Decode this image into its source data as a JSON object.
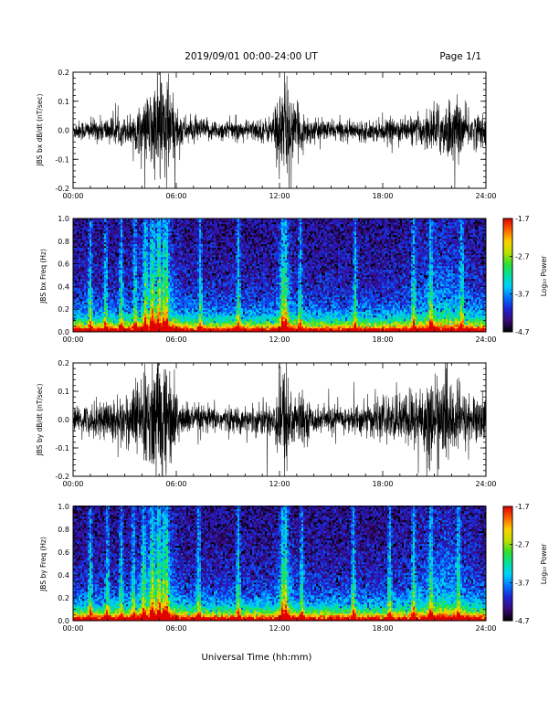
{
  "header": {
    "date_range": "2019/09/01  00:00-24:00 UT",
    "page": "Page 1/1"
  },
  "colorbar": {
    "title": "Log₁₀ Power",
    "tick_labels": [
      "-1.7",
      "-2.7",
      "-3.7",
      "-4.7"
    ],
    "range": [
      -4.7,
      -1.7
    ],
    "colors": [
      "#000000",
      "#3a0a7a",
      "#2020d0",
      "#0070ff",
      "#00d0ff",
      "#00e0a0",
      "#30e030",
      "#c0e000",
      "#ffd000",
      "#ff6000",
      "#e00000"
    ]
  },
  "chart_data": [
    {
      "type": "line",
      "ylabel": "JBS bx dB/dt (nT/sec)",
      "x_tick_labels": [
        "00:00",
        "06:00",
        "12:00",
        "18:00",
        "24:00"
      ],
      "xlim": [
        0,
        24
      ],
      "ylim": [
        -0.2,
        0.2
      ],
      "y_tick_labels": [
        "0.2",
        "0.1",
        "0.0",
        "-0.1",
        "-0.2"
      ],
      "y_ticks": [
        0.2,
        0.1,
        0.0,
        -0.1,
        -0.2
      ],
      "activity_envelope": [
        {
          "t": 0.0,
          "amp": 0.035
        },
        {
          "t": 1.0,
          "amp": 0.04
        },
        {
          "t": 2.0,
          "amp": 0.05
        },
        {
          "t": 3.0,
          "amp": 0.05
        },
        {
          "t": 4.0,
          "amp": 0.09
        },
        {
          "t": 4.5,
          "amp": 0.15
        },
        {
          "t": 5.0,
          "amp": 0.22
        },
        {
          "t": 5.4,
          "amp": 0.25
        },
        {
          "t": 5.8,
          "amp": 0.12
        },
        {
          "t": 6.5,
          "amp": 0.05
        },
        {
          "t": 8.0,
          "amp": 0.04
        },
        {
          "t": 10.0,
          "amp": 0.035
        },
        {
          "t": 11.5,
          "amp": 0.05
        },
        {
          "t": 12.3,
          "amp": 0.22
        },
        {
          "t": 12.8,
          "amp": 0.1
        },
        {
          "t": 14.0,
          "amp": 0.04
        },
        {
          "t": 16.0,
          "amp": 0.035
        },
        {
          "t": 18.0,
          "amp": 0.04
        },
        {
          "t": 20.0,
          "amp": 0.05
        },
        {
          "t": 21.0,
          "amp": 0.09
        },
        {
          "t": 22.0,
          "amp": 0.12
        },
        {
          "t": 23.0,
          "amp": 0.07
        },
        {
          "t": 24.0,
          "amp": 0.06
        }
      ]
    },
    {
      "type": "heatmap",
      "ylabel": "JBS bx Freq (Hz)",
      "x_tick_labels": [
        "00:00",
        "06:00",
        "12:00",
        "18:00",
        "24:00"
      ],
      "xlim": [
        0,
        24
      ],
      "ylim": [
        0.0,
        1.0
      ],
      "y_tick_labels": [
        "1.0",
        "0.8",
        "0.6",
        "0.4",
        "0.2",
        "0.0"
      ],
      "y_ticks": [
        1.0,
        0.8,
        0.6,
        0.4,
        0.2,
        0.0
      ],
      "zlim": [
        -4.7,
        -1.7
      ],
      "bright_columns_hr": [
        1.0,
        1.9,
        2.8,
        3.6,
        4.2,
        4.6,
        5.0,
        5.3,
        5.45,
        7.4,
        9.6,
        12.2,
        12.35,
        13.2,
        16.4,
        19.8,
        20.8,
        22.6
      ]
    },
    {
      "type": "line",
      "ylabel": "JBS by dB/dt (nT/sec)",
      "x_tick_labels": [
        "00:00",
        "06:00",
        "12:00",
        "18:00",
        "24:00"
      ],
      "xlim": [
        0,
        24
      ],
      "ylim": [
        -0.2,
        0.2
      ],
      "y_tick_labels": [
        "0.2",
        "0.1",
        "0.0",
        "-0.1",
        "-0.2"
      ],
      "y_ticks": [
        0.2,
        0.1,
        0.0,
        -0.1,
        -0.2
      ],
      "activity_envelope": [
        {
          "t": 0.0,
          "amp": 0.04
        },
        {
          "t": 1.0,
          "amp": 0.06
        },
        {
          "t": 2.0,
          "amp": 0.08
        },
        {
          "t": 3.0,
          "amp": 0.1
        },
        {
          "t": 4.0,
          "amp": 0.16
        },
        {
          "t": 4.5,
          "amp": 0.22
        },
        {
          "t": 5.0,
          "amp": 0.25
        },
        {
          "t": 5.4,
          "amp": 0.25
        },
        {
          "t": 5.8,
          "amp": 0.14
        },
        {
          "t": 6.5,
          "amp": 0.06
        },
        {
          "t": 8.0,
          "amp": 0.05
        },
        {
          "t": 10.0,
          "amp": 0.045
        },
        {
          "t": 11.5,
          "amp": 0.07
        },
        {
          "t": 12.3,
          "amp": 0.22
        },
        {
          "t": 12.8,
          "amp": 0.12
        },
        {
          "t": 14.0,
          "amp": 0.05
        },
        {
          "t": 16.0,
          "amp": 0.05
        },
        {
          "t": 17.5,
          "amp": 0.07
        },
        {
          "t": 19.0,
          "amp": 0.09
        },
        {
          "t": 20.5,
          "amp": 0.15
        },
        {
          "t": 21.5,
          "amp": 0.17
        },
        {
          "t": 23.0,
          "amp": 0.1
        },
        {
          "t": 24.0,
          "amp": 0.08
        }
      ]
    },
    {
      "type": "heatmap",
      "ylabel": "JBS by Freq (Hz)",
      "x_tick_labels": [
        "00:00",
        "06:00",
        "12:00",
        "18:00",
        "24:00"
      ],
      "xlim": [
        0,
        24
      ],
      "ylim": [
        0.0,
        1.0
      ],
      "y_tick_labels": [
        "1.0",
        "0.8",
        "0.6",
        "0.4",
        "0.2",
        "0.0"
      ],
      "y_ticks": [
        1.0,
        0.8,
        0.6,
        0.4,
        0.2,
        0.0
      ],
      "zlim": [
        -4.7,
        -1.7
      ],
      "bright_columns_hr": [
        1.0,
        2.0,
        2.8,
        3.5,
        4.1,
        4.6,
        5.0,
        5.3,
        5.45,
        7.3,
        9.6,
        12.2,
        12.35,
        13.3,
        16.3,
        18.4,
        19.8,
        20.8,
        22.4
      ]
    }
  ],
  "xlabel": "Universal Time (hh:mm)"
}
